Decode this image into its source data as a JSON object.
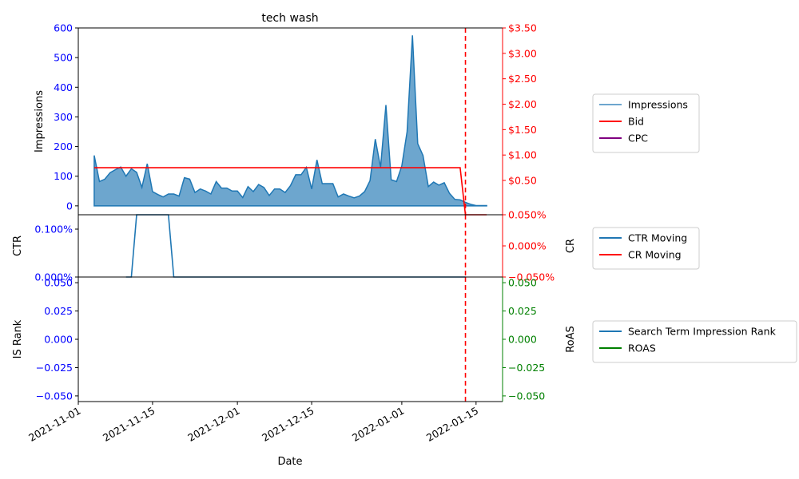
{
  "chart_data": {
    "title": "tech wash",
    "type": "multi-panel time series",
    "xlabel": "Date",
    "x_ticks": [
      "2021-11-01",
      "2021-11-15",
      "2021-12-01",
      "2021-12-15",
      "2022-01-01",
      "2022-01-15"
    ],
    "x_range": [
      "2021-11-01",
      "2022-01-20"
    ],
    "vline": {
      "date": "2022-01-13",
      "color": "#ff0000",
      "style": "dashed"
    },
    "panels": [
      {
        "ylabel_left": "Impressions",
        "ylabel_right": "",
        "left_ticks": [
          "0",
          "100",
          "200",
          "300",
          "400",
          "500",
          "600"
        ],
        "left_ylim": [
          -30,
          600
        ],
        "right_ticks": [
          "$0.50",
          "$1.00",
          "$1.50",
          "$2.00",
          "$2.50",
          "$3.00",
          "$3.50"
        ],
        "right_ylim": [
          -0.175,
          3.5
        ],
        "legend": [
          "Impressions",
          "Bid",
          "CPC"
        ],
        "series": [
          {
            "name": "Impressions",
            "type": "area",
            "axis": "left",
            "color": "#1f77b4",
            "points": [
              [
                "2021-11-04",
                170
              ],
              [
                "2021-11-05",
                82
              ],
              [
                "2021-11-06",
                90
              ],
              [
                "2021-11-07",
                112
              ],
              [
                "2021-11-08",
                122
              ],
              [
                "2021-11-09",
                131
              ],
              [
                "2021-11-10",
                100
              ],
              [
                "2021-11-11",
                125
              ],
              [
                "2021-11-12",
                113
              ],
              [
                "2021-11-13",
                62
              ],
              [
                "2021-11-14",
                142
              ],
              [
                "2021-11-15",
                48
              ],
              [
                "2021-11-16",
                38
              ],
              [
                "2021-11-17",
                30
              ],
              [
                "2021-11-18",
                40
              ],
              [
                "2021-11-19",
                40
              ],
              [
                "2021-11-20",
                33
              ],
              [
                "2021-11-21",
                95
              ],
              [
                "2021-11-22",
                90
              ],
              [
                "2021-11-23",
                45
              ],
              [
                "2021-11-24",
                57
              ],
              [
                "2021-11-25",
                50
              ],
              [
                "2021-11-26",
                40
              ],
              [
                "2021-11-27",
                82
              ],
              [
                "2021-11-28",
                60
              ],
              [
                "2021-11-29",
                60
              ],
              [
                "2021-11-30",
                50
              ],
              [
                "2021-12-01",
                50
              ],
              [
                "2021-12-02",
                28
              ],
              [
                "2021-12-03",
                65
              ],
              [
                "2021-12-04",
                48
              ],
              [
                "2021-12-05",
                72
              ],
              [
                "2021-12-06",
                62
              ],
              [
                "2021-12-07",
                35
              ],
              [
                "2021-12-08",
                57
              ],
              [
                "2021-12-09",
                57
              ],
              [
                "2021-12-10",
                45
              ],
              [
                "2021-12-11",
                68
              ],
              [
                "2021-12-12",
                105
              ],
              [
                "2021-12-13",
                105
              ],
              [
                "2021-12-14",
                130
              ],
              [
                "2021-12-15",
                57
              ],
              [
                "2021-12-16",
                155
              ],
              [
                "2021-12-17",
                75
              ],
              [
                "2021-12-18",
                75
              ],
              [
                "2021-12-19",
                75
              ],
              [
                "2021-12-20",
                30
              ],
              [
                "2021-12-21",
                40
              ],
              [
                "2021-12-22",
                33
              ],
              [
                "2021-12-23",
                27
              ],
              [
                "2021-12-24",
                33
              ],
              [
                "2021-12-25",
                48
              ],
              [
                "2021-12-26",
                85
              ],
              [
                "2021-12-27",
                225
              ],
              [
                "2021-12-28",
                130
              ],
              [
                "2021-12-29",
                340
              ],
              [
                "2021-12-30",
                88
              ],
              [
                "2021-12-31",
                82
              ],
              [
                "2022-01-01",
                135
              ],
              [
                "2022-01-02",
                250
              ],
              [
                "2022-01-03",
                575
              ],
              [
                "2022-01-04",
                210
              ],
              [
                "2022-01-05",
                170
              ],
              [
                "2022-01-06",
                65
              ],
              [
                "2022-01-07",
                80
              ],
              [
                "2022-01-08",
                70
              ],
              [
                "2022-01-09",
                78
              ],
              [
                "2022-01-10",
                42
              ],
              [
                "2022-01-11",
                22
              ],
              [
                "2022-01-12",
                20
              ],
              [
                "2022-01-13",
                12
              ],
              [
                "2022-01-14",
                5
              ],
              [
                "2022-01-15",
                1
              ],
              [
                "2022-01-16",
                1
              ],
              [
                "2022-01-17",
                1
              ]
            ]
          },
          {
            "name": "Bid",
            "type": "line",
            "axis": "right",
            "color": "#ff0000",
            "points": [
              [
                "2021-11-04",
                0.75
              ],
              [
                "2022-01-12",
                0.75
              ],
              [
                "2022-01-13",
                -0.175
              ],
              [
                "2022-01-17",
                -0.175
              ]
            ]
          },
          {
            "name": "CPC",
            "type": "line",
            "axis": "right",
            "color": "#800080",
            "points": []
          }
        ]
      },
      {
        "ylabel_left": "CTR",
        "ylabel_right": "CR",
        "left_ticks": [
          "0.000%",
          "0.100%"
        ],
        "left_ylim": [
          0,
          0.13
        ],
        "right_ticks": [
          "−0.050%",
          "0.000%",
          "0.050%"
        ],
        "right_ylim": [
          -0.05,
          0.05
        ],
        "legend": [
          "CTR Moving",
          "CR Moving"
        ],
        "series": [
          {
            "name": "CTR Moving",
            "type": "line",
            "axis": "left",
            "color": "#1f77b4",
            "points": [
              [
                "2021-11-10",
                0.0
              ],
              [
                "2021-11-11",
                0.0
              ],
              [
                "2021-11-12",
                0.13
              ],
              [
                "2021-11-18",
                0.13
              ],
              [
                "2021-11-19",
                0.0
              ],
              [
                "2022-01-13",
                0.0
              ]
            ]
          },
          {
            "name": "CR Moving",
            "type": "line",
            "axis": "right",
            "color": "#ff0000",
            "points": []
          }
        ]
      },
      {
        "ylabel_left": "IS Rank",
        "ylabel_right": "RoAS",
        "left_ticks": [
          "−0.050",
          "−0.025",
          "0.000",
          "0.025",
          "0.050"
        ],
        "left_ylim": [
          -0.055,
          0.055
        ],
        "right_ticks": [
          "−0.050",
          "−0.025",
          "0.000",
          "0.025",
          "0.050"
        ],
        "right_ylim": [
          -0.055,
          0.055
        ],
        "legend": [
          "Search Term Impression Rank",
          "ROAS"
        ],
        "series": [
          {
            "name": "Search Term Impression Rank",
            "type": "line",
            "axis": "left",
            "color": "#1f77b4",
            "points": []
          },
          {
            "name": "ROAS",
            "type": "line",
            "axis": "right",
            "color": "#008000",
            "points": []
          }
        ]
      }
    ],
    "colors": {
      "left_axis": "#0000ff",
      "right_axis_top": "#ff0000",
      "right_axis_middle": "#ff0000",
      "right_axis_bottom": "#008000"
    }
  }
}
